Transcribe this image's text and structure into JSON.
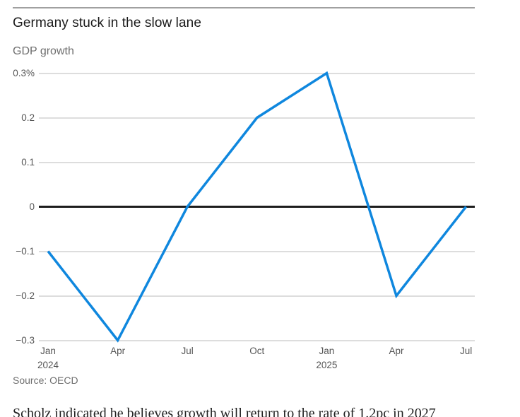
{
  "header": {
    "title": "Germany stuck in the slow lane",
    "subtitle": "GDP growth"
  },
  "chart_data": {
    "type": "line",
    "title": "Germany stuck in the slow lane",
    "subtitle": "GDP growth",
    "ylabel": "GDP growth",
    "unit": "%",
    "categories": [
      "Jan 2024",
      "Apr 2024",
      "Jul 2024",
      "Oct 2024",
      "Jan 2025",
      "Apr 2025",
      "Jul 2025"
    ],
    "series": [
      {
        "name": "GDP growth",
        "values": [
          -0.1,
          -0.3,
          0,
          0.2,
          0.3,
          -0.2,
          0
        ]
      }
    ],
    "x_tick_labels": [
      [
        "Jan",
        "2024"
      ],
      [
        "Apr"
      ],
      [
        "Jul"
      ],
      [
        "Oct"
      ],
      [
        "Jan",
        "2025"
      ],
      [
        "Apr"
      ],
      [
        "Jul"
      ]
    ],
    "y_ticks": [
      {
        "value": 0.3,
        "label": "0.3%"
      },
      {
        "value": 0.2,
        "label": "0.2"
      },
      {
        "value": 0.1,
        "label": "0.1"
      },
      {
        "value": 0,
        "label": "0"
      },
      {
        "value": -0.1,
        "label": "−0.1"
      },
      {
        "value": -0.2,
        "label": "−0.2"
      },
      {
        "value": -0.3,
        "label": "−0.3"
      }
    ],
    "ylim": [
      -0.3,
      0.3
    ],
    "grid": true,
    "legend_position": "none",
    "zero_axis_emphasized": true,
    "source": "Source: OECD",
    "colors": {
      "line": "#0f87de",
      "grid": "#dddddd",
      "zero_line": "#1d1d1d",
      "tick_text": "#565656"
    }
  },
  "source_note": "Source: OECD",
  "footer": {
    "clipped_paragraph": "Scholz indicated he believes growth will return to the rate of 1.2pc in 2027"
  }
}
